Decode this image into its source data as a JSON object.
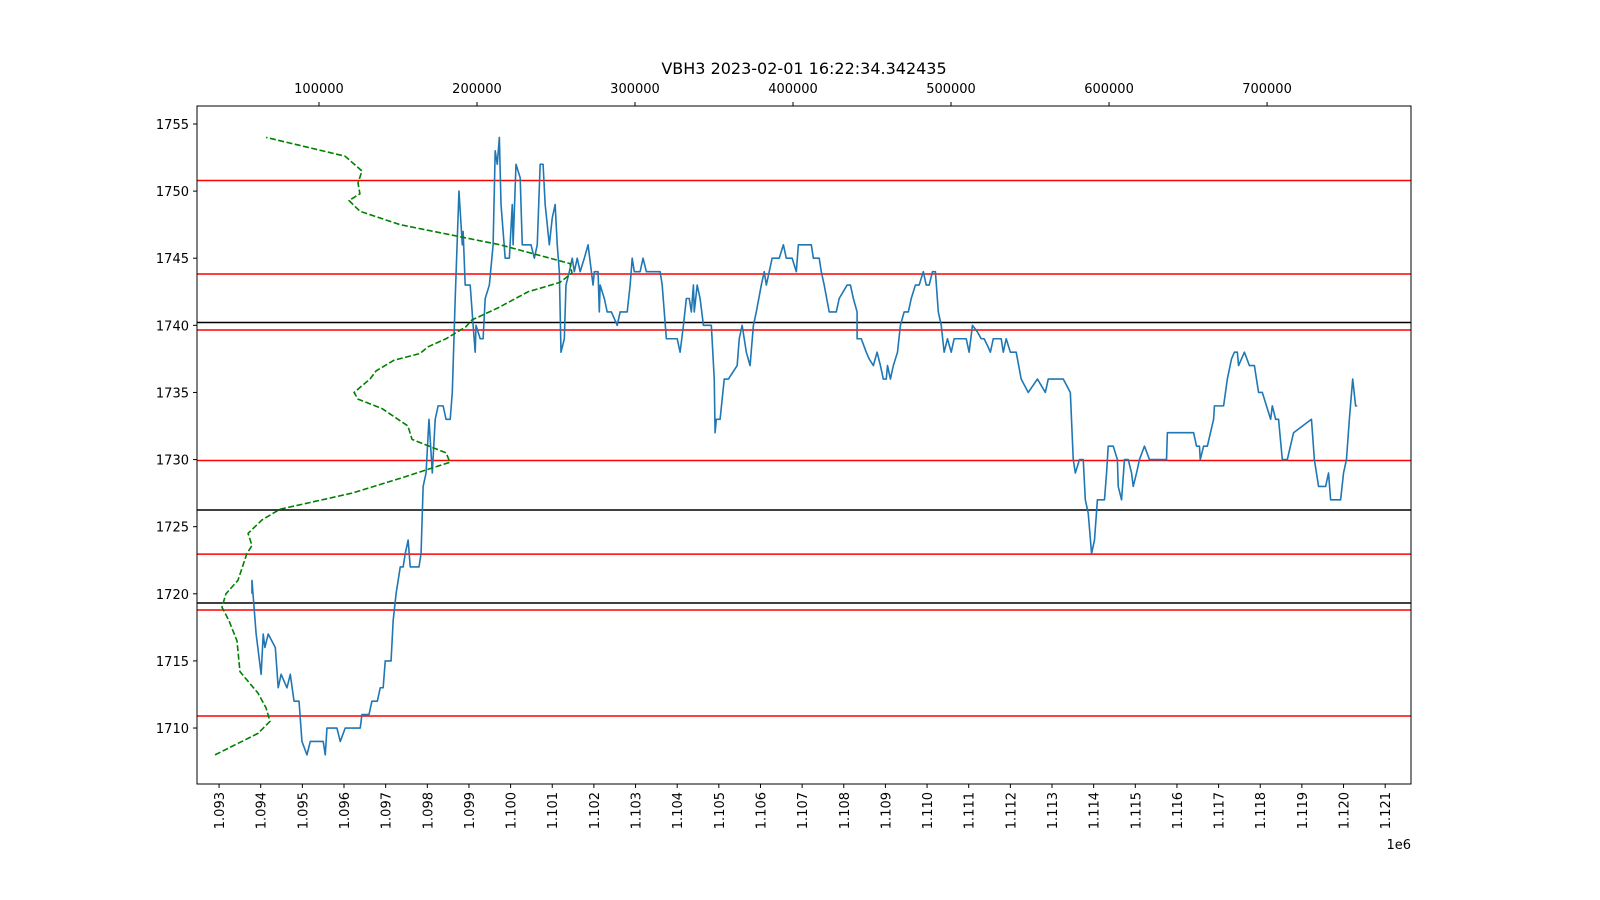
{
  "chart_data": {
    "type": "line",
    "title": "VBH3 2023-02-01 16:22:34.342435",
    "x_offset_label": "1e6",
    "xlim": [
      1.09247,
      1.12162
    ],
    "xticks": [
      1.093,
      1.094,
      1.095,
      1.096,
      1.097,
      1.098,
      1.099,
      {
        "value": 1.1,
        "label": "1.100"
      },
      1.101,
      1.102,
      1.103,
      1.104,
      1.105,
      1.106,
      1.107,
      1.108,
      1.109,
      {
        "value": 1.11,
        "label": "1.110"
      },
      1.111,
      1.112,
      1.113,
      1.114,
      1.115,
      1.116,
      1.117,
      1.118,
      1.119,
      {
        "value": 1.12,
        "label": "1.120"
      },
      1.121
    ],
    "x2lim": [
      22800,
      791100
    ],
    "x2ticks": [
      100000,
      200000,
      300000,
      400000,
      500000,
      600000,
      700000
    ],
    "ylim": [
      1705.83,
      1756.34
    ],
    "yticks": [
      1710,
      1715,
      1720,
      1725,
      1730,
      1735,
      1740,
      1745,
      1750,
      1755
    ],
    "horizontal_lines": [
      {
        "y": 1750.79,
        "color": "#ff0000"
      },
      {
        "y": 1743.82,
        "color": "#ff0000"
      },
      {
        "y": 1739.65,
        "color": "#ff0000"
      },
      {
        "y": 1729.93,
        "color": "#ff0000"
      },
      {
        "y": 1722.96,
        "color": "#ff0000"
      },
      {
        "y": 1718.79,
        "color": "#ff0000"
      },
      {
        "y": 1710.9,
        "color": "#ff0000"
      },
      {
        "y": 1740.21,
        "color": "#000000"
      },
      {
        "y": 1726.24,
        "color": "#000000"
      },
      {
        "y": 1719.31,
        "color": "#000000"
      }
    ],
    "series": [
      {
        "color": "#1f77b4",
        "dashed": false,
        "x": [
          1.09379,
          1.09379,
          1.09389,
          1.09401,
          1.09406,
          1.0941,
          1.09418,
          1.09435,
          1.09442,
          1.09449,
          1.09463,
          1.09471,
          1.0948,
          1.09492,
          1.09499,
          1.09511,
          1.09519,
          1.0955,
          1.09555,
          1.09559,
          1.09571,
          1.09583,
          1.09591,
          1.09603,
          1.09639,
          1.09643,
          1.0966,
          1.09667,
          1.0968,
          1.09687,
          1.09694,
          1.09699,
          1.09713,
          1.09718,
          1.09725,
          1.09735,
          1.09742,
          1.09747,
          1.09754,
          1.09759,
          1.0978,
          1.09785,
          1.0979,
          1.09797,
          1.09804,
          1.09812,
          1.09819,
          1.09826,
          1.09838,
          1.09845,
          1.09855,
          1.0986,
          1.09867,
          1.09876,
          1.09884,
          1.09886,
          1.09891,
          1.09903,
          1.0991,
          1.09915,
          1.09917,
          1.09927,
          1.09934,
          1.09939,
          1.09949,
          1.09958,
          1.09963,
          1.09968,
          1.09973,
          1.09977,
          1.09987,
          1.09997,
          1.10004,
          1.10006,
          1.10013,
          1.10023,
          1.10028,
          1.10042,
          1.10049,
          1.10057,
          1.10064,
          1.10071,
          1.10078,
          1.10083,
          1.10093,
          1.101,
          1.10107,
          1.10112,
          1.10117,
          1.10121,
          1.10129,
          1.10133,
          1.10141,
          1.10148,
          1.10153,
          1.1016,
          1.10167,
          1.10177,
          1.10186,
          1.10194,
          1.10198,
          1.10201,
          1.1021,
          1.10213,
          1.10215,
          1.10225,
          1.10232,
          1.10242,
          1.10249,
          1.10256,
          1.10263,
          1.1028,
          1.10287,
          1.10292,
          1.10297,
          1.10311,
          1.10318,
          1.10326,
          1.10359,
          1.10364,
          1.10374,
          1.104,
          1.10407,
          1.10415,
          1.10422,
          1.10429,
          1.10434,
          1.10439,
          1.10441,
          1.10448,
          1.10455,
          1.10463,
          1.10482,
          1.10489,
          1.10491,
          1.10494,
          1.10503,
          1.10513,
          1.10523,
          1.10544,
          1.10549,
          1.10556,
          1.10566,
          1.10575,
          1.10583,
          1.1059,
          1.10602,
          1.10609,
          1.10614,
          1.10621,
          1.10628,
          1.10645,
          1.10655,
          1.10662,
          1.10676,
          1.10686,
          1.10691,
          1.10722,
          1.10727,
          1.10741,
          1.10746,
          1.10753,
          1.10765,
          1.10782,
          1.10789,
          1.10808,
          1.10816,
          1.10823,
          1.10832,
          1.10832,
          1.10842,
          1.10854,
          1.10861,
          1.10871,
          1.1088,
          1.10888,
          1.10895,
          1.10902,
          1.10905,
          1.10912,
          1.10919,
          1.10929,
          1.10936,
          1.10945,
          1.10955,
          1.10962,
          1.10972,
          1.10981,
          1.10991,
          1.10998,
          1.11005,
          1.11013,
          1.1102,
          1.11027,
          1.11034,
          1.11041,
          1.11049,
          1.11058,
          1.11065,
          1.11075,
          1.11082,
          1.11094,
          1.11101,
          1.11109,
          1.11121,
          1.1113,
          1.11137,
          1.11145,
          1.11152,
          1.11159,
          1.11169,
          1.11178,
          1.11183,
          1.1119,
          1.112,
          1.11214,
          1.11226,
          1.11243,
          1.11265,
          1.11284,
          1.11291,
          1.11327,
          1.11344,
          1.11351,
          1.11356,
          1.11366,
          1.11375,
          1.1138,
          1.11387,
          1.11395,
          1.11402,
          1.11409,
          1.11426,
          1.11431,
          1.11435,
          1.11447,
          1.11457,
          1.11459,
          1.11467,
          1.11474,
          1.11483,
          1.11491,
          1.11495,
          1.11503,
          1.1151,
          1.11522,
          1.11534,
          1.11575,
          1.11577,
          1.1164,
          1.11647,
          1.11654,
          1.11656,
          1.11664,
          1.11673,
          1.11688,
          1.1169,
          1.11712,
          1.11721,
          1.11731,
          1.11738,
          1.11745,
          1.11748,
          1.11762,
          1.11774,
          1.11786,
          1.11796,
          1.11805,
          1.11815,
          1.11825,
          1.11829,
          1.11837,
          1.11844,
          1.11853,
          1.11865,
          1.1188,
          1.11923,
          1.1193,
          1.1194,
          1.11957,
          1.11964,
          1.11969,
          1.11993,
          1.12,
          1.12007,
          1.12014,
          1.12022,
          1.12029,
          1.12033
        ],
        "values": [
          1720,
          1721,
          1717,
          1714,
          1717,
          1716,
          1717,
          1716,
          1713,
          1714,
          1713,
          1714,
          1712,
          1712,
          1709,
          1708,
          1709,
          1709,
          1708,
          1710,
          1710,
          1710,
          1709,
          1710,
          1710,
          1711,
          1711,
          1712,
          1712,
          1713,
          1713,
          1715,
          1715,
          1718,
          1720,
          1722,
          1722,
          1723,
          1724,
          1722,
          1722,
          1723,
          1728,
          1729,
          1733,
          1729,
          1733,
          1734,
          1734,
          1733,
          1733,
          1735,
          1742,
          1750,
          1746,
          1747,
          1743,
          1743,
          1740,
          1738,
          1740,
          1739,
          1739,
          1742,
          1743,
          1746,
          1753,
          1752,
          1754,
          1749,
          1745,
          1745,
          1749,
          1746,
          1752,
          1751,
          1746,
          1746,
          1746,
          1745,
          1746,
          1752,
          1752,
          1749,
          1746,
          1748,
          1749,
          1746,
          1744,
          1738,
          1739,
          1743,
          1744,
          1745,
          1744,
          1745,
          1744,
          1745,
          1746,
          1744,
          1743,
          1744,
          1744,
          1741,
          1743,
          1742,
          1741,
          1741,
          1740.5,
          1740,
          1741,
          1741,
          1743,
          1745,
          1744,
          1744,
          1745,
          1744,
          1744,
          1743,
          1739,
          1739,
          1738,
          1740,
          1742,
          1742,
          1741,
          1743,
          1741,
          1743,
          1742,
          1740,
          1740,
          1736,
          1732,
          1733,
          1733,
          1736,
          1736,
          1737,
          1739,
          1740,
          1738,
          1737,
          1740,
          1741,
          1743,
          1744,
          1743,
          1744,
          1745,
          1745,
          1746,
          1745,
          1745,
          1744,
          1746,
          1746,
          1745,
          1745,
          1744,
          1743,
          1741,
          1741,
          1742,
          1743,
          1743,
          1742,
          1741,
          1739,
          1739,
          1738,
          1737.5,
          1737,
          1738,
          1737,
          1736,
          1736,
          1737,
          1736,
          1737,
          1738,
          1740,
          1741,
          1741,
          1742,
          1743,
          1743,
          1744,
          1743,
          1743,
          1744,
          1744,
          1741,
          1740,
          1738,
          1739,
          1738,
          1739,
          1739,
          1739,
          1739,
          1738,
          1740,
          1739.5,
          1739,
          1739,
          1738.5,
          1738,
          1739,
          1739,
          1739,
          1738,
          1739,
          1738,
          1738,
          1736,
          1735,
          1736,
          1735,
          1736,
          1736,
          1735,
          1730,
          1729,
          1730,
          1730,
          1727,
          1726,
          1723,
          1724,
          1727,
          1727,
          1729,
          1731,
          1731,
          1730,
          1728,
          1727,
          1730,
          1730,
          1729,
          1728,
          1729,
          1730,
          1731,
          1730,
          1730,
          1732,
          1732,
          1731,
          1731,
          1730,
          1731,
          1731,
          1733,
          1734,
          1734,
          1736,
          1737.5,
          1738,
          1738,
          1737,
          1738,
          1737,
          1737,
          1735,
          1735,
          1734,
          1733,
          1734,
          1733,
          1733,
          1730,
          1730,
          1732,
          1733,
          1730,
          1728,
          1728,
          1729,
          1727,
          1727,
          1729,
          1730,
          1733,
          1736,
          1734,
          1734
        ]
      },
      {
        "color": "#008000",
        "dashed": true,
        "axis": "x2",
        "x": [
          34200,
          61400,
          69000,
          66500,
          61400,
          50000,
          48100,
          43000,
          38600,
          41100,
          48700,
          54400,
          57600,
          55100,
          63900,
          75300,
          120900,
          151300,
          182900,
          180400,
          158900,
          156300,
          139900,
          124700,
          122200,
          132300,
          136100,
          147500,
          163900,
          169000,
          180400,
          193000,
          196800,
          213300,
          232300,
          252500,
          260100,
          258900,
          214600,
          151300,
          125900,
          119000,
          125900,
          124700,
          127200,
          116500,
          88000,
          66500
        ],
        "values": [
          1708,
          1709.6,
          1710.5,
          1711.5,
          1712.6,
          1714.2,
          1716.5,
          1718,
          1719,
          1720,
          1721,
          1723,
          1723.6,
          1724.5,
          1725.5,
          1726.3,
          1727.5,
          1728.6,
          1729.8,
          1730.5,
          1731.5,
          1732.5,
          1733.8,
          1734.5,
          1735,
          1736,
          1736.6,
          1737.4,
          1737.9,
          1738.4,
          1739,
          1739.9,
          1740.4,
          1741.3,
          1742.5,
          1743.2,
          1743.9,
          1744.6,
          1746,
          1747.5,
          1748.5,
          1749.3,
          1749.8,
          1750.6,
          1751.5,
          1752.6,
          1753.4,
          1754
        ]
      }
    ]
  }
}
